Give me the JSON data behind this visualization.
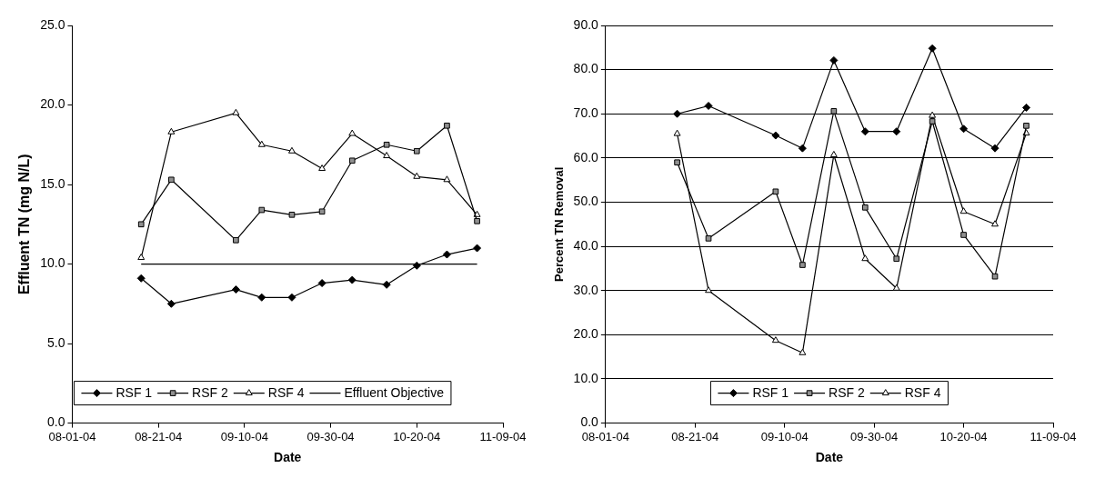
{
  "chart_data": [
    {
      "type": "line",
      "xlabel": "Date",
      "ylabel": "Effluent TN (mg N/L)",
      "xlim": [
        "2004-08-01",
        "2004-11-09"
      ],
      "xticks": [
        {
          "value": "2004-08-01",
          "label": "08-01-04"
        },
        {
          "value": "2004-08-21",
          "label": "08-21-04"
        },
        {
          "value": "2004-09-10",
          "label": "09-10-04"
        },
        {
          "value": "2004-09-30",
          "label": "09-30-04"
        },
        {
          "value": "2004-10-20",
          "label": "10-20-04"
        },
        {
          "value": "2004-11-09",
          "label": "11-09-04"
        }
      ],
      "ylim": [
        0,
        25
      ],
      "yticks": [
        {
          "value": 0,
          "label": "0.0"
        },
        {
          "value": 5,
          "label": "5.0"
        },
        {
          "value": 10,
          "label": "10.0"
        },
        {
          "value": 15,
          "label": "15.0"
        },
        {
          "value": 20,
          "label": "20.0"
        },
        {
          "value": 25,
          "label": "25.0"
        }
      ],
      "x": [
        "2004-08-17",
        "2004-08-24",
        "2004-09-08",
        "2004-09-14",
        "2004-09-21",
        "2004-09-28",
        "2004-10-05",
        "2004-10-13",
        "2004-10-20",
        "2004-10-27",
        "2004-11-03"
      ],
      "series": [
        {
          "name": "RSF 1",
          "color": "#000000",
          "marker": "diamond",
          "values": [
            9.1,
            7.5,
            8.4,
            7.9,
            7.9,
            8.8,
            9.0,
            8.7,
            9.9,
            10.6,
            11.0
          ]
        },
        {
          "name": "RSF 2",
          "color": "#000000",
          "marker": "square",
          "values": [
            12.5,
            15.3,
            11.5,
            13.4,
            13.1,
            13.3,
            16.5,
            17.5,
            17.1,
            18.7,
            12.7
          ]
        },
        {
          "name": "RSF 4",
          "color": "#000000",
          "marker": "triangle",
          "values": [
            10.4,
            18.3,
            19.5,
            17.5,
            17.1,
            16.0,
            18.2,
            16.8,
            15.5,
            15.3,
            13.1
          ]
        },
        {
          "name": "Effluent Objective",
          "color": "#000000",
          "marker": "none",
          "x": [
            "2004-08-17",
            "2004-11-03"
          ],
          "values": [
            10,
            10
          ]
        }
      ],
      "legend": "bottom left",
      "grid": false,
      "line_style": "solid"
    },
    {
      "type": "line",
      "xlabel": "Date",
      "ylabel": "Percent TN Removal",
      "xlim": [
        "2004-08-01",
        "2004-11-09"
      ],
      "xticks": [
        {
          "value": "2004-08-01",
          "label": "08-01-04"
        },
        {
          "value": "2004-08-21",
          "label": "08-21-04"
        },
        {
          "value": "2004-09-10",
          "label": "09-10-04"
        },
        {
          "value": "2004-09-30",
          "label": "09-30-04"
        },
        {
          "value": "2004-10-20",
          "label": "10-20-04"
        },
        {
          "value": "2004-11-09",
          "label": "11-09-04"
        }
      ],
      "ylim": [
        0,
        90
      ],
      "yticks": [
        {
          "value": 0,
          "label": "0.0"
        },
        {
          "value": 10,
          "label": "10.0"
        },
        {
          "value": 20,
          "label": "20.0"
        },
        {
          "value": 30,
          "label": "30.0"
        },
        {
          "value": 40,
          "label": "40.0"
        },
        {
          "value": 50,
          "label": "50.0"
        },
        {
          "value": 60,
          "label": "60.0"
        },
        {
          "value": 70,
          "label": "70.0"
        },
        {
          "value": 80,
          "label": "80.0"
        },
        {
          "value": 90,
          "label": "90.0"
        }
      ],
      "x": [
        "2004-08-17",
        "2004-08-24",
        "2004-09-08",
        "2004-09-14",
        "2004-09-21",
        "2004-09-28",
        "2004-10-05",
        "2004-10-13",
        "2004-10-20",
        "2004-10-27",
        "2004-11-03"
      ],
      "series": [
        {
          "name": "RSF 1",
          "color": "#000000",
          "marker": "diamond",
          "values": [
            70.0,
            71.8,
            65.1,
            62.2,
            82.1,
            66.0,
            66.0,
            84.8,
            66.6,
            62.2,
            71.4
          ]
        },
        {
          "name": "RSF 2",
          "color": "#000000",
          "marker": "square",
          "values": [
            59.0,
            41.8,
            52.4,
            35.8,
            70.6,
            48.8,
            37.2,
            68.3,
            42.6,
            33.2,
            67.3
          ]
        },
        {
          "name": "RSF 4",
          "color": "#000000",
          "marker": "triangle",
          "values": [
            65.5,
            30.0,
            18.7,
            15.9,
            60.7,
            37.2,
            30.5,
            69.6,
            47.9,
            45.0,
            65.6
          ]
        }
      ],
      "legend": "bottom",
      "grid": "y",
      "line_style": "solid"
    }
  ]
}
